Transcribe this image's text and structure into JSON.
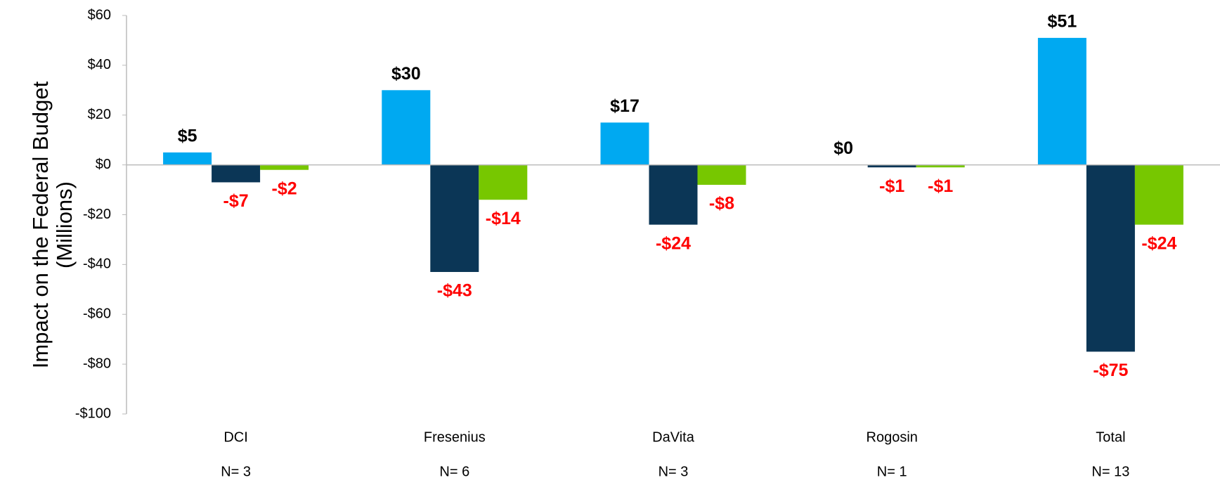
{
  "chart_data": {
    "type": "bar",
    "ylabel": [
      "Impact on the Federal Budget",
      "(Millions)"
    ],
    "categories": [
      "DCI",
      "Fresenius",
      "DaVita",
      "Rogosin",
      "Total"
    ],
    "category_notes": [
      "N= 3",
      "N= 6",
      "N= 3",
      "N= 1",
      "N= 13"
    ],
    "series": [
      {
        "color": "#00a9f1",
        "values": [
          5,
          30,
          17,
          0,
          51
        ],
        "value_labels": [
          "$5",
          "$30",
          "$17",
          "$0",
          "$51"
        ]
      },
      {
        "color": "#0b3656",
        "values": [
          -7,
          -43,
          -24,
          -1,
          -75
        ],
        "value_labels": [
          "-$7",
          "-$43",
          "-$24",
          "-$1",
          "-$75"
        ]
      },
      {
        "color": "#77c700",
        "values": [
          -2,
          -14,
          -8,
          -1,
          -24
        ],
        "value_labels": [
          "-$2",
          "-$14",
          "-$8",
          "-$1",
          "-$24"
        ]
      }
    ],
    "value_label_colors": {
      "positive": "#000000",
      "negative": "#ff0000"
    },
    "ylim": [
      -100,
      60
    ],
    "yticks": [
      {
        "value": -100,
        "label": "-$100"
      },
      {
        "value": -80,
        "label": "-$80"
      },
      {
        "value": -60,
        "label": "-$60"
      },
      {
        "value": -40,
        "label": "-$40"
      },
      {
        "value": -20,
        "label": "-$20"
      },
      {
        "value": 0,
        "label": "$0"
      },
      {
        "value": 20,
        "label": "$20"
      },
      {
        "value": 40,
        "label": "$40"
      },
      {
        "value": 60,
        "label": "$60"
      }
    ],
    "grid": false
  }
}
